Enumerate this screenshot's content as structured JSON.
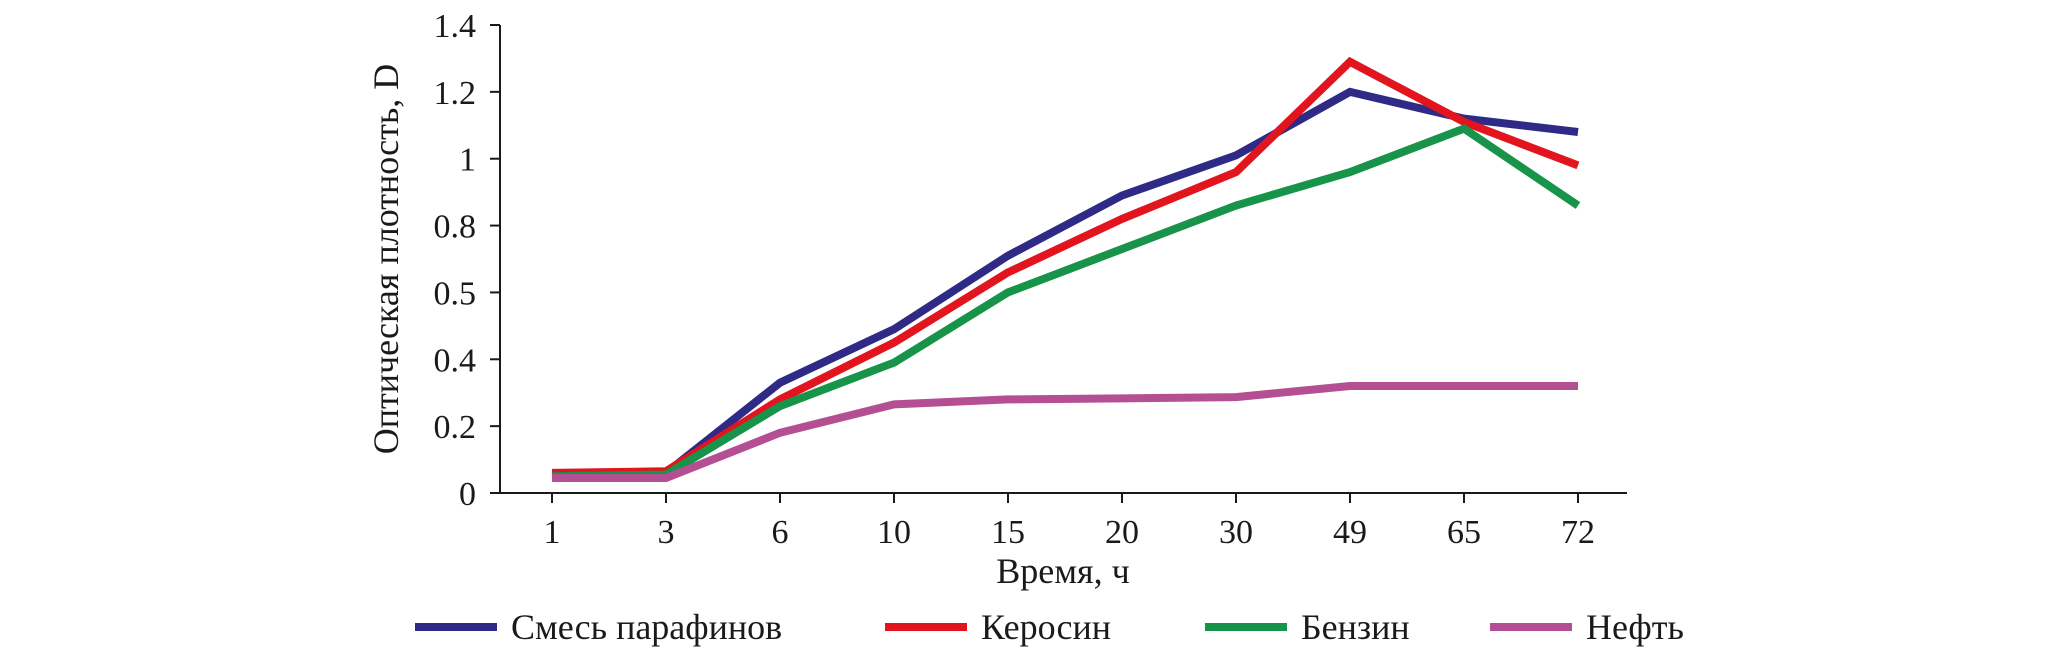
{
  "chart_data": {
    "type": "line",
    "title": "",
    "xlabel": "Время, ч",
    "ylabel": "Оптическая плотность, D",
    "categories": [
      "1",
      "3",
      "6",
      "10",
      "15",
      "20",
      "30",
      "49",
      "65",
      "72"
    ],
    "y_ticks": [
      "0",
      "0.2",
      "0.4",
      "0.5",
      "0.8",
      "1",
      "1.2",
      "1.4"
    ],
    "ylim": [
      0,
      1.4
    ],
    "grid": false,
    "legend_position": "bottom",
    "series": [
      {
        "name": "Смесь парафинов",
        "color": "#2e2a86",
        "values": [
          0.05,
          0.06,
          0.33,
          0.49,
          0.71,
          0.89,
          1.01,
          1.2,
          1.12,
          1.08
        ]
      },
      {
        "name": "Керосин",
        "color": "#e2151f",
        "values": [
          0.06,
          0.065,
          0.28,
          0.45,
          0.66,
          0.82,
          0.96,
          1.29,
          1.11,
          0.98
        ]
      },
      {
        "name": "Бензин",
        "color": "#17934a",
        "values": [
          0.05,
          0.055,
          0.26,
          0.39,
          0.6,
          0.73,
          0.86,
          0.96,
          1.09,
          0.86
        ]
      },
      {
        "name": "Нефть",
        "color": "#b44f94",
        "values": [
          0.045,
          0.045,
          0.18,
          0.265,
          0.28,
          0.283,
          0.287,
          0.32,
          0.32,
          0.32
        ]
      }
    ]
  }
}
